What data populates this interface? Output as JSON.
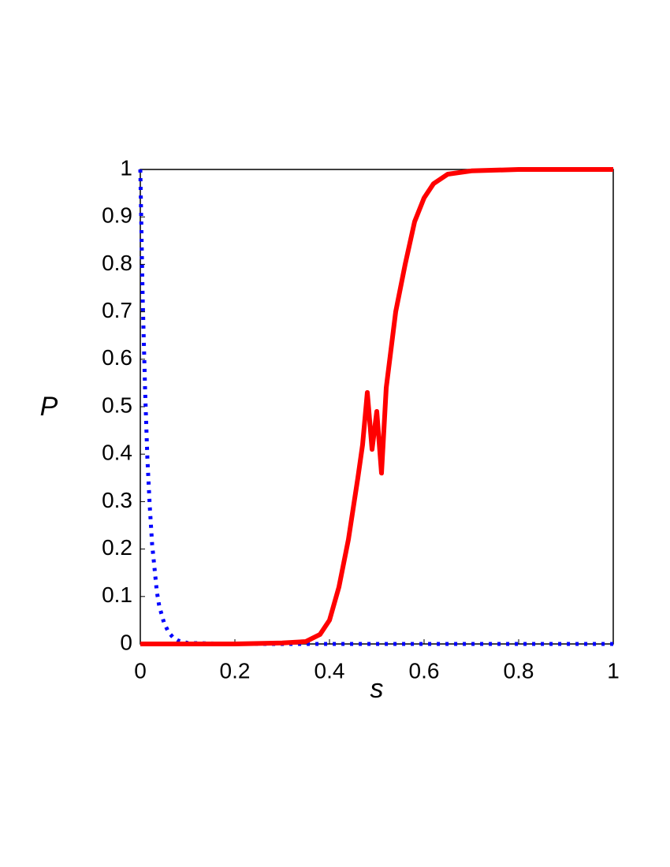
{
  "chart_data": {
    "type": "line",
    "xlabel": "s",
    "ylabel": "P",
    "xlim": [
      0,
      1
    ],
    "ylim": [
      0,
      1
    ],
    "xticks": [
      0,
      0.2,
      0.4,
      0.6,
      0.8,
      1
    ],
    "yticks": [
      0,
      0.1,
      0.2,
      0.3,
      0.4,
      0.5,
      0.6,
      0.7,
      0.8,
      0.9,
      1
    ],
    "series": [
      {
        "color": "#0000ff",
        "style": "dotted",
        "x": [
          0,
          0.005,
          0.01,
          0.015,
          0.02,
          0.025,
          0.03,
          0.035,
          0.04,
          0.05,
          0.06,
          0.07,
          0.08,
          0.1,
          0.2,
          0.4,
          0.6,
          0.8,
          1
        ],
        "values": [
          1,
          0.73,
          0.54,
          0.39,
          0.29,
          0.21,
          0.16,
          0.11,
          0.08,
          0.045,
          0.024,
          0.013,
          0.007,
          0.002,
          0,
          0,
          0,
          0,
          0
        ]
      },
      {
        "color": "#ff0000",
        "style": "solid",
        "x": [
          0,
          0.1,
          0.2,
          0.3,
          0.35,
          0.38,
          0.4,
          0.42,
          0.44,
          0.46,
          0.47,
          0.48,
          0.49,
          0.5,
          0.51,
          0.52,
          0.53,
          0.54,
          0.56,
          0.58,
          0.6,
          0.62,
          0.65,
          0.7,
          0.8,
          1
        ],
        "values": [
          0,
          0,
          0,
          0.002,
          0.005,
          0.02,
          0.05,
          0.12,
          0.22,
          0.35,
          0.42,
          0.53,
          0.41,
          0.49,
          0.36,
          0.54,
          0.62,
          0.7,
          0.8,
          0.89,
          0.94,
          0.97,
          0.99,
          0.997,
          1,
          1
        ]
      }
    ]
  }
}
